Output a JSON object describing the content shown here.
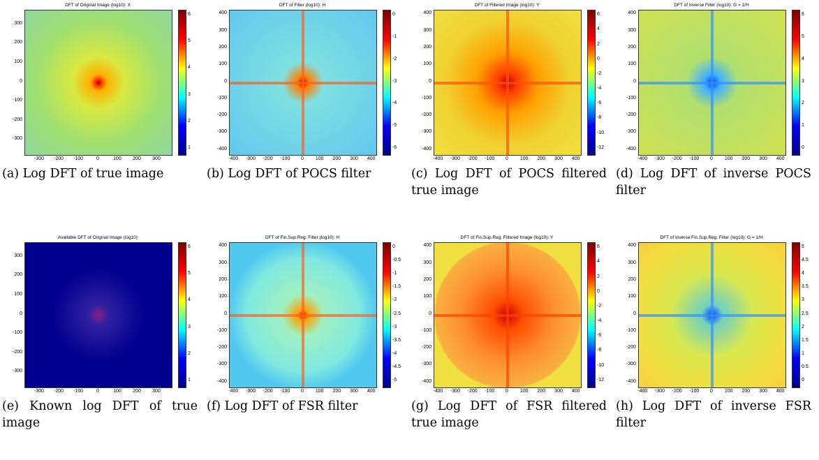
{
  "panels": [
    {
      "title": "DFT of Original Image (log10): X",
      "xticks": [
        -300,
        -200,
        -100,
        0,
        100,
        200,
        300
      ],
      "yticks": [
        300,
        200,
        100,
        0,
        -100,
        -200,
        -300
      ],
      "cbar_ticks": [
        6,
        5,
        4,
        3,
        2,
        1
      ],
      "caption": "(a) Log DFT of true image"
    },
    {
      "title": "DFT of Filter (log10): H",
      "xticks": [
        -400,
        -300,
        -200,
        -100,
        0,
        100,
        200,
        300,
        400
      ],
      "yticks": [
        400,
        300,
        200,
        100,
        0,
        -100,
        -200,
        -300,
        -400
      ],
      "cbar_ticks": [
        0,
        -1,
        -2,
        -3,
        -4,
        -5,
        -6
      ],
      "caption": "(b) Log DFT of POCS filter"
    },
    {
      "title": "DFT of Filtered Image (log10): Y",
      "xticks": [
        -400,
        -300,
        -200,
        -100,
        0,
        100,
        200,
        300,
        400
      ],
      "yticks": [
        400,
        300,
        200,
        100,
        0,
        -100,
        -200,
        -300,
        -400
      ],
      "cbar_ticks": [
        6,
        4,
        2,
        0,
        -2,
        -4,
        -6,
        -8,
        -10,
        -12
      ],
      "caption": "(c) Log DFT of POCS filtered true image"
    },
    {
      "title": "DFT of Inverse Filter (log10): G = 1/H",
      "xticks": [
        -400,
        -300,
        -200,
        -100,
        0,
        100,
        200,
        300,
        400
      ],
      "yticks": [
        400,
        300,
        200,
        100,
        0,
        -100,
        -200,
        -300,
        -400
      ],
      "cbar_ticks": [
        6,
        5,
        4,
        3,
        2,
        1,
        0
      ],
      "caption": "(d) Log DFT of inverse POCS filter"
    },
    {
      "title": "Available DFT of Original Image (log10)",
      "xticks": [
        -300,
        -200,
        -100,
        0,
        100,
        200,
        300
      ],
      "yticks": [
        300,
        200,
        100,
        0,
        -100,
        -200,
        -300
      ],
      "cbar_ticks": [
        6,
        5,
        4,
        3,
        2,
        1
      ],
      "caption": "(e) Known log DFT of true image"
    },
    {
      "title": "DFT of Fin.Sup.Reg. Filter (log10): H",
      "xticks": [
        -400,
        -300,
        -200,
        -100,
        0,
        100,
        200,
        300,
        400
      ],
      "yticks": [
        400,
        300,
        200,
        100,
        0,
        -100,
        -200,
        -300,
        -400
      ],
      "cbar_ticks": [
        0,
        -0.5,
        -1,
        -1.5,
        -2,
        -2.5,
        -3,
        -3.5,
        -4,
        -4.5,
        -5
      ],
      "caption": "(f) Log DFT of FSR filter"
    },
    {
      "title": "DFT of Fin.Sup.Reg. Filtered Image (log10): Y",
      "xticks": [
        -400,
        -300,
        -200,
        -100,
        0,
        100,
        200,
        300,
        400
      ],
      "yticks": [
        400,
        300,
        200,
        100,
        0,
        -100,
        -200,
        -300,
        -400
      ],
      "cbar_ticks": [
        6,
        4,
        2,
        0,
        -2,
        -4,
        -6,
        -8,
        -10,
        -12
      ],
      "caption": "(g) Log DFT of FSR filtered true image"
    },
    {
      "title": "DFT of Inverse Fin.Sup.Reg. Filter (log10): G = 1/H",
      "xticks": [
        -400,
        -300,
        -200,
        -100,
        0,
        100,
        200,
        300,
        400
      ],
      "yticks": [
        400,
        300,
        200,
        100,
        0,
        -100,
        -200,
        -300,
        -400
      ],
      "cbar_ticks": [
        5,
        4.5,
        4,
        3.5,
        3,
        2.5,
        2,
        1.5,
        1,
        0.5,
        0
      ],
      "caption": "(h) Log DFT of inverse FSR filter"
    }
  ]
}
